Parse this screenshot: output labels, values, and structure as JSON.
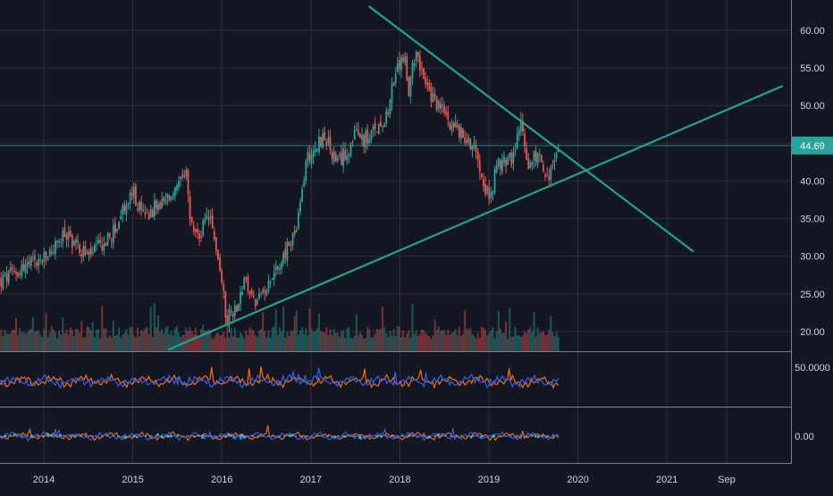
{
  "chart_data": [
    {
      "type": "candlestick",
      "title": "",
      "x_axis": {
        "tick_labels": [
          "2014",
          "2015",
          "2016",
          "2017",
          "2018",
          "2019",
          "2020",
          "2021",
          "Sep"
        ]
      },
      "y_axis": {
        "range": [
          17.5,
          63
        ],
        "tick_labels": [
          "60.00",
          "55.00",
          "50.00",
          "45.00",
          "40.00",
          "35.00",
          "30.00",
          "25.00",
          "20.00"
        ],
        "position": "right"
      },
      "grid": true,
      "price_keypoints": [
        {
          "t": 2013.5,
          "v": 26.5
        },
        {
          "t": 2013.75,
          "v": 28.5
        },
        {
          "t": 2014.0,
          "v": 29.5
        },
        {
          "t": 2014.25,
          "v": 33.0
        },
        {
          "t": 2014.5,
          "v": 30.0
        },
        {
          "t": 2014.75,
          "v": 32.5
        },
        {
          "t": 2015.0,
          "v": 38.5
        },
        {
          "t": 2015.1,
          "v": 35.5
        },
        {
          "t": 2015.35,
          "v": 37.0
        },
        {
          "t": 2015.5,
          "v": 39.0
        },
        {
          "t": 2015.6,
          "v": 40.5
        },
        {
          "t": 2015.65,
          "v": 34.0
        },
        {
          "t": 2015.75,
          "v": 32.5
        },
        {
          "t": 2015.85,
          "v": 35.5
        },
        {
          "t": 2015.95,
          "v": 30.5
        },
        {
          "t": 2016.05,
          "v": 22.0
        },
        {
          "t": 2016.15,
          "v": 23.0
        },
        {
          "t": 2016.25,
          "v": 26.5
        },
        {
          "t": 2016.4,
          "v": 23.5
        },
        {
          "t": 2016.5,
          "v": 26.5
        },
        {
          "t": 2016.7,
          "v": 30.0
        },
        {
          "t": 2016.85,
          "v": 34.0
        },
        {
          "t": 2016.95,
          "v": 43.0
        },
        {
          "t": 2017.15,
          "v": 46.0
        },
        {
          "t": 2017.3,
          "v": 42.0
        },
        {
          "t": 2017.5,
          "v": 46.0
        },
        {
          "t": 2017.65,
          "v": 45.5
        },
        {
          "t": 2017.85,
          "v": 49.0
        },
        {
          "t": 2017.95,
          "v": 54.0
        },
        {
          "t": 2018.05,
          "v": 57.0
        },
        {
          "t": 2018.1,
          "v": 51.0
        },
        {
          "t": 2018.18,
          "v": 58.0
        },
        {
          "t": 2018.3,
          "v": 52.0
        },
        {
          "t": 2018.5,
          "v": 49.0
        },
        {
          "t": 2018.7,
          "v": 46.0
        },
        {
          "t": 2018.85,
          "v": 44.5
        },
        {
          "t": 2019.0,
          "v": 37.5
        },
        {
          "t": 2019.1,
          "v": 42.0
        },
        {
          "t": 2019.3,
          "v": 43.5
        },
        {
          "t": 2019.35,
          "v": 48.0
        },
        {
          "t": 2019.45,
          "v": 42.0
        },
        {
          "t": 2019.55,
          "v": 44.0
        },
        {
          "t": 2019.65,
          "v": 40.0
        },
        {
          "t": 2019.72,
          "v": 42.0
        },
        {
          "t": 2019.78,
          "v": 44.0
        }
      ],
      "last_price": {
        "value": 44.69,
        "label": "44.69",
        "color": "#26a69a"
      },
      "trendlines": [
        {
          "name": "descending",
          "from": {
            "t": 2017.65,
            "v": 63.2
          },
          "to": {
            "t": 2021.3,
            "v": 30.6
          }
        },
        {
          "name": "ascending",
          "from": {
            "t": 2015.4,
            "v": 17.6
          },
          "to": {
            "t": 2022.3,
            "v": 52.6
          }
        }
      ],
      "volume": {
        "shown": true,
        "colors": {
          "up": "#26a69a",
          "down": "#ef5350"
        }
      },
      "colors": {
        "up": "#26a69a",
        "down": "#ef5350",
        "trendline": "#1fa58e",
        "background": "#131722",
        "grid": "#2a2e39",
        "axis_text": "#d1d4dc"
      }
    },
    {
      "type": "line",
      "y_axis": {
        "tick_labels": [
          "50.0000"
        ]
      },
      "series_colors": [
        "#ff6d00",
        "#2962ff"
      ]
    },
    {
      "type": "line",
      "y_axis": {
        "tick_labels": [
          "0.00"
        ]
      },
      "series_colors": [
        "#ff6d00",
        "#2962ff",
        "#ffffff",
        "#26c6da"
      ]
    }
  ]
}
